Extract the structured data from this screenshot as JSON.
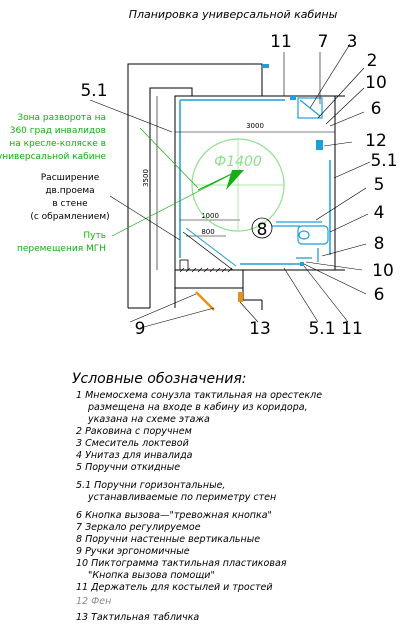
{
  "title": "Планировка универсальной кабины",
  "callouts": {
    "c11_top": "11",
    "c7": "7",
    "c3": "3",
    "c2": "2",
    "c10_top": "10",
    "c6_top": "6",
    "c12": "12",
    "c51_right": "5.1",
    "c5": "5",
    "c4": "4",
    "c8_right": "8",
    "c10_bot": "10",
    "c6_bot": "6",
    "c51_left": "5.1",
    "c9": "9",
    "c13": "13",
    "c51_bot": "5.1",
    "c11_bot": "11",
    "c8_center": "8"
  },
  "notes": {
    "zone": [
      "Зона разворота на",
      "360 град инвалидов",
      "на кресле-коляске в",
      "универсальной кабине"
    ],
    "door": [
      "Расширение",
      "дв.проема",
      "в   стене",
      "(с обрамлением)"
    ],
    "path": [
      "Путь",
      "перемещения  МГН"
    ]
  },
  "dimensions": {
    "width": "3000",
    "height": "3500",
    "d1000": "1000",
    "d800": "800",
    "circle": "Ф1400"
  },
  "legend": {
    "heading": "Условные  обозначения:",
    "items": [
      "1  Мнемосхема сонузла тактильная на орестекле",
      "размещена на входе в кабину из коридора,",
      "указана на схеме этажа",
      "2  Раковина с поручнем",
      "3  Смеситель локтевой",
      "4  Унитаз для инвалида",
      "5  Поручни откидные",
      "5.1  Поручни горизонтальные,",
      "устанавливаемые по периметру стен",
      "6  Кнопка вызова—\"тревожная кнопка\"",
      "7  Зеркало регулируемое",
      "8  Поручни настенные вертикальные",
      "9  Ручки эргономичные",
      "10  Пиктограмма тактильная пластиковая",
      "\"Кнопка вызова помощи\"",
      "11  Держатель для костылей и тростей",
      "12  Фен",
      "13  Тактильная табличка"
    ]
  },
  "colors": {
    "wall": "#000000",
    "handrail": "#1e9fd8",
    "zone": "#8ee08e",
    "arrow": "#10b010",
    "handle": "#e8901a",
    "legendGrey": "#8a8a8a"
  }
}
